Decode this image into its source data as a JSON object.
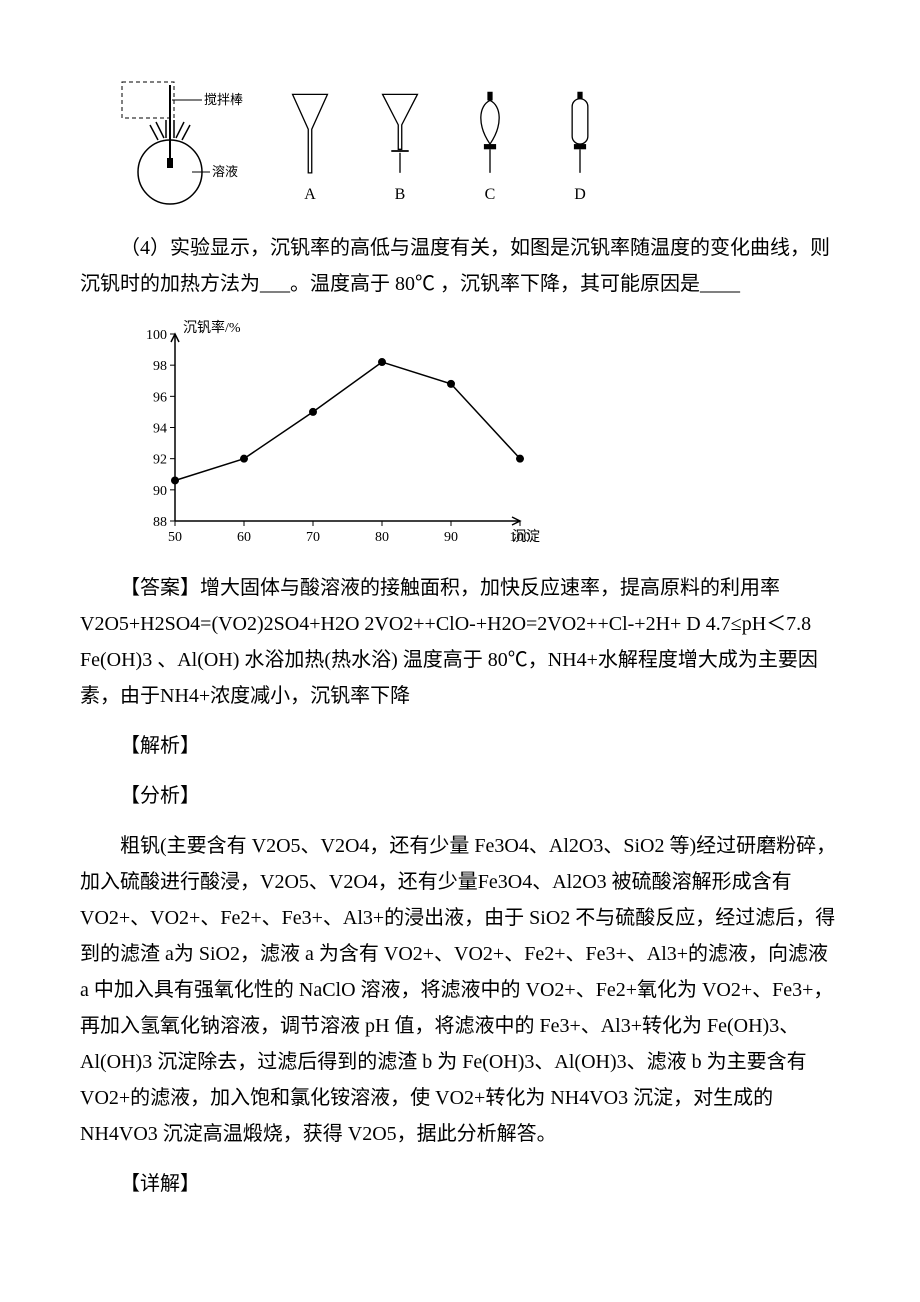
{
  "apparatus": {
    "stir_label": "搅拌棒",
    "solution_label": "溶液",
    "funnel_labels": [
      "A",
      "B",
      "C",
      "D"
    ]
  },
  "q4": {
    "text_prefix": "（4）实验显示，沉钒率的高低与温度有关，如图是沉钒率随温度的变化曲线，则沉钒时的加热方法为___。温度高于",
    "temp_threshold": "80℃",
    "text_suffix": "，沉钒率下降，其可能原因是____"
  },
  "chart": {
    "ylabel": "沉钒率/%",
    "xlabel": "沉淀温度/℃",
    "x_ticks": [
      50,
      60,
      70,
      80,
      90,
      100
    ],
    "y_ticks": [
      88,
      90,
      92,
      94,
      96,
      98,
      100
    ],
    "xlim": [
      50,
      100
    ],
    "ylim": [
      88,
      100
    ],
    "points": [
      {
        "x": 50,
        "y": 90.6
      },
      {
        "x": 60,
        "y": 92
      },
      {
        "x": 70,
        "y": 95
      },
      {
        "x": 80,
        "y": 98.2
      },
      {
        "x": 90,
        "y": 96.8
      },
      {
        "x": 100,
        "y": 92
      }
    ],
    "line_color": "#000000",
    "marker_color": "#000000",
    "marker_size": 4,
    "axis_color": "#000000",
    "tick_fontsize": 14,
    "label_fontsize": 14,
    "background": "#ffffff"
  },
  "answer": {
    "label": "【答案】",
    "text": "增大固体与酸溶液的接触面积，加快反应速率，提高原料的利用率 V2O5+H2SO4=(VO2)2SO4+H2O 2VO2++ClO-+H2O=2VO2++Cl-+2H+ D 4.7≤pH＜7.8 Fe(OH)3 、Al(OH) 水浴加热(热水浴) 温度高于 80℃，NH4+水解程度增大成为主要因素，由于NH4+浓度减小，沉钒率下降"
  },
  "jiexi_label": "【解析】",
  "fenxi_label": "【分析】",
  "analysis": {
    "text": "粗钒(主要含有 V2O5、V2O4，还有少量 Fe3O4、Al2O3、SiO2 等)经过研磨粉碎，加入硫酸进行酸浸，V2O5、V2O4，还有少量Fe3O4、Al2O3 被硫酸溶解形成含有 VO2+、VO2+、Fe2+、Fe3+、Al3+的浸出液，由于 SiO2 不与硫酸反应，经过滤后，得到的滤渣 a为 SiO2，滤液 a 为含有 VO2+、VO2+、Fe2+、Fe3+、Al3+的滤液，向滤液 a 中加入具有强氧化性的 NaClO 溶液，将滤液中的 VO2+、Fe2+氧化为 VO2+、Fe3+，再加入氢氧化钠溶液，调节溶液 pH 值，将滤液中的 Fe3+、Al3+转化为 Fe(OH)3、Al(OH)3 沉淀除去，过滤后得到的滤渣 b 为 Fe(OH)3、Al(OH)3、滤液 b 为主要含有 VO2+的滤液，加入饱和氯化铵溶液，使 VO2+转化为 NH4VO3 沉淀，对生成的NH4VO3 沉淀高温煅烧，获得 V2O5，据此分析解答。"
  },
  "xiangjie_label": "【详解】",
  "watermark_text": ""
}
